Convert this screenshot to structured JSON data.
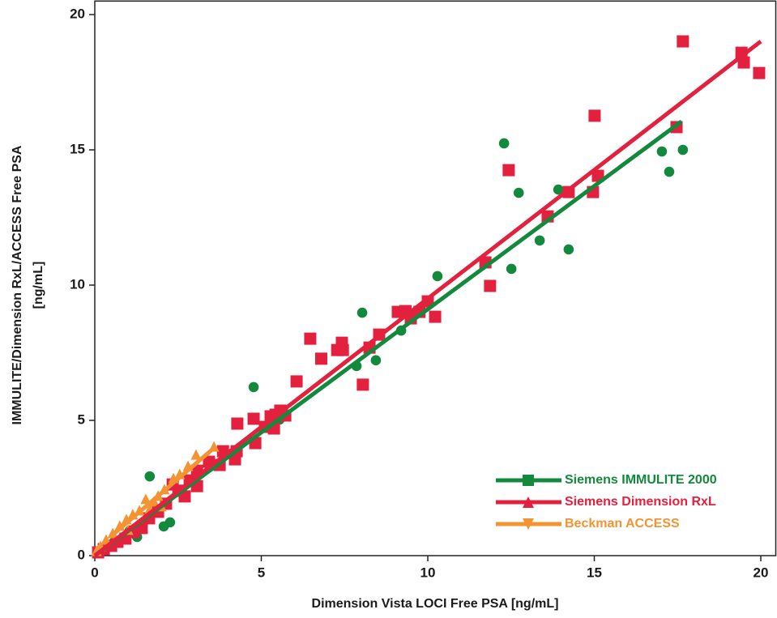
{
  "chart_data": {
    "type": "scatter",
    "xlabel": "Dimension Vista LOCI Free PSA [ng/mL]",
    "ylabel": [
      "IMMULITE/Dimension RxL/ACCESS Free PSA",
      "[ng/mL]"
    ],
    "xlim": [
      0,
      20.45
    ],
    "ylim": [
      0,
      20.5
    ],
    "xticks": [
      0,
      5,
      10,
      15,
      20
    ],
    "yticks": [
      0,
      5,
      10,
      15,
      20
    ],
    "legend": "lower right",
    "series": [
      {
        "name": "Siemens IMMULITE 2000",
        "color": "#12893c",
        "marker": "circle",
        "legend_marker": "square",
        "x": [
          4.77,
          8.03,
          7.86,
          8.44,
          9.2,
          10.29,
          12.29,
          12.51,
          12.73,
          13.36,
          13.92,
          14.23,
          17.03,
          17.25,
          17.66,
          1.65,
          2.26,
          2.07,
          1.27,
          5.55,
          0.2,
          0.56,
          1.05
        ],
        "values": [
          6.23,
          8.98,
          7.01,
          7.22,
          8.32,
          10.33,
          15.24,
          10.6,
          13.41,
          11.65,
          13.53,
          11.32,
          14.94,
          14.19,
          15.0,
          2.93,
          1.23,
          1.08,
          0.69,
          5.03,
          0.18,
          0.48,
          0.93
        ],
        "fit": {
          "x": [
            0,
            17.62
          ],
          "y": [
            0,
            16.05
          ]
        }
      },
      {
        "name": "Siemens Dimension RxL",
        "color": "#e4203f",
        "marker": "square",
        "legend_marker": "triangle-up",
        "x": [
          17.66,
          19.42,
          19.49,
          19.95,
          17.47,
          15.01,
          15.11,
          14.96,
          14.23,
          13.6,
          12.43,
          11.73,
          11.87,
          10.22,
          10.0,
          9.75,
          9.49,
          9.1,
          9.33,
          8.54,
          8.25,
          8.05,
          7.45,
          7.42,
          7.28,
          6.8,
          6.47,
          6.06,
          5.72,
          5.57,
          5.43,
          5.38,
          5.28,
          5.11,
          4.77,
          4.82,
          4.28,
          4.26,
          4.21,
          3.85,
          3.75,
          3.43,
          3.07,
          3.07,
          2.85,
          2.7,
          2.51,
          2.34,
          2.14,
          1.9,
          1.63,
          1.41,
          1.17,
          0.92,
          0.68,
          0.49,
          0.27,
          0.1
        ],
        "values": [
          19.01,
          18.59,
          18.23,
          17.84,
          15.84,
          16.26,
          14.04,
          13.44,
          13.44,
          12.54,
          14.25,
          10.84,
          9.97,
          8.83,
          9.4,
          9.01,
          8.77,
          9.01,
          9.04,
          8.17,
          7.69,
          6.32,
          7.6,
          7.87,
          7.6,
          7.28,
          8.02,
          6.44,
          5.18,
          5.36,
          5.21,
          4.7,
          5.15,
          4.76,
          5.06,
          4.16,
          4.88,
          3.86,
          3.56,
          3.86,
          3.35,
          3.47,
          3.14,
          2.57,
          2.78,
          2.19,
          2.4,
          2.63,
          1.92,
          1.62,
          1.38,
          1.02,
          0.87,
          0.63,
          0.51,
          0.36,
          0.24,
          0.12
        ],
        "fit": {
          "x": [
            0,
            20.0
          ],
          "y": [
            0,
            19.01
          ]
        }
      },
      {
        "name": "Beckman ACCESS",
        "color": "#f39332",
        "marker": "triangle-up",
        "legend_marker": "triangle-down",
        "x": [
          3.58,
          3.04,
          2.8,
          2.55,
          2.36,
          2.09,
          1.9,
          2.0,
          1.78,
          1.53,
          1.34,
          1.14,
          0.95,
          0.75,
          0.54,
          0.34,
          0.17,
          0.05,
          1.65,
          1.0
        ],
        "values": [
          4.04,
          3.74,
          3.32,
          3.02,
          2.87,
          2.46,
          2.22,
          1.83,
          2.01,
          2.1,
          1.68,
          1.53,
          1.35,
          1.11,
          0.84,
          0.6,
          0.36,
          0.18,
          1.74,
          0.96
        ],
        "fit": {
          "x": [
            0.5,
            3.6
          ],
          "y": [
            0.73,
            4.0
          ]
        }
      }
    ]
  }
}
